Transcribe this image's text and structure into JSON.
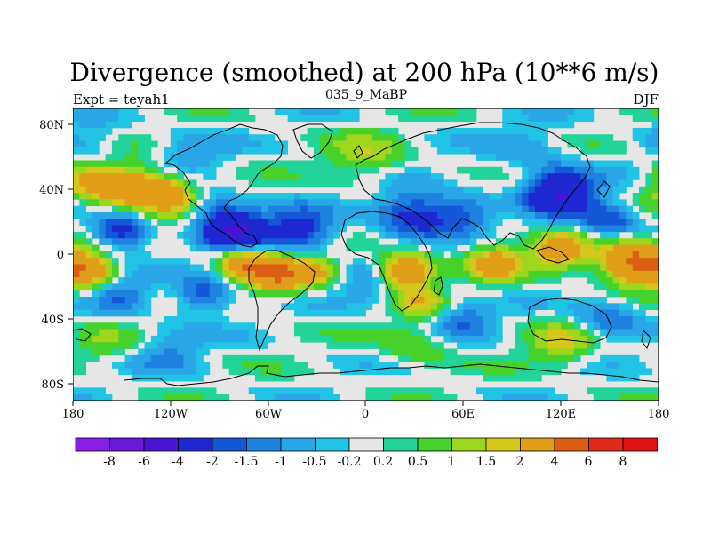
{
  "title": "Divergence (smoothed) at 200 hPa (10**6 m/s)",
  "left_label": "Expt = teyah1",
  "center_label": "035_9_MaBP",
  "right_label": "DJF",
  "y_tick_labels": [
    "80N",
    "40N",
    "0",
    "40S",
    "80S"
  ],
  "x_tick_labels": [
    "180",
    "120W",
    "60W",
    "0",
    "60E",
    "120E",
    "180"
  ],
  "colorbar": {
    "labels": [
      "-8",
      "-6",
      "-4",
      "-2",
      "-1.5",
      "-1",
      "-0.5",
      "-0.2",
      "0.2",
      "0.5",
      "1",
      "1.5",
      "2",
      "4",
      "6",
      "8"
    ],
    "colors": [
      "#8a20e8",
      "#6a18dc",
      "#4a14d4",
      "#1e28d0",
      "#1458d8",
      "#1e82e0",
      "#28a6e8",
      "#22c4e6",
      "#e6e6e6",
      "#22d49a",
      "#46d22a",
      "#9ed61e",
      "#d6c81a",
      "#e09e18",
      "#dc5e12",
      "#e22a1a",
      "#e21414"
    ]
  },
  "chart_data": {
    "type": "heatmap",
    "title": "Divergence (smoothed) at 200 hPa (10**6 m/s)",
    "units": "10**6 m/s",
    "levels": [
      -8,
      -6,
      -4,
      -2,
      -1.5,
      -1,
      -0.5,
      -0.2,
      0.2,
      0.5,
      1,
      1.5,
      2,
      4,
      6,
      8
    ],
    "x_range": [
      -180,
      180
    ],
    "y_range": [
      -90,
      90
    ],
    "x_ticks": [
      -180,
      -120,
      -60,
      0,
      60,
      120,
      180
    ],
    "y_ticks": [
      80,
      40,
      0,
      -40,
      -80
    ],
    "colormap_colors": [
      "#8a20e8",
      "#6a18dc",
      "#4a14d4",
      "#1e28d0",
      "#1458d8",
      "#1e82e0",
      "#28a6e8",
      "#22c4e6",
      "#e6e6e6",
      "#22d49a",
      "#46d22a",
      "#9ed61e",
      "#d6c81a",
      "#e09e18",
      "#dc5e12",
      "#e22a1a",
      "#e21414"
    ],
    "field_features": [
      {
        "lon": -145,
        "lat": 40,
        "value": 3,
        "spread": 16
      },
      {
        "lon": -120,
        "lat": 37,
        "value": 2,
        "spread": 14
      },
      {
        "lon": -170,
        "lat": 45,
        "value": 1.5,
        "spread": 12
      },
      {
        "lon": -150,
        "lat": 15,
        "value": -3,
        "spread": 12
      },
      {
        "lon": -80,
        "lat": 15,
        "value": -4,
        "spread": 13
      },
      {
        "lon": -40,
        "lat": 15,
        "value": -2.5,
        "spread": 14
      },
      {
        "lon": -95,
        "lat": 30,
        "value": -1.5,
        "spread": 10
      },
      {
        "lon": 30,
        "lat": 25,
        "value": -2.5,
        "spread": 16
      },
      {
        "lon": 120,
        "lat": 38,
        "value": -4,
        "spread": 14
      },
      {
        "lon": 150,
        "lat": 20,
        "value": -2,
        "spread": 12
      },
      {
        "lon": 60,
        "lat": 25,
        "value": -1.5,
        "spread": 12
      },
      {
        "lon": -55,
        "lat": -12,
        "value": 4,
        "spread": 12
      },
      {
        "lon": -75,
        "lat": -5,
        "value": 3,
        "spread": 10
      },
      {
        "lon": -30,
        "lat": -10,
        "value": 2,
        "spread": 10
      },
      {
        "lon": 25,
        "lat": -10,
        "value": 4,
        "spread": 11
      },
      {
        "lon": 35,
        "lat": -30,
        "value": 1.5,
        "spread": 10
      },
      {
        "lon": 80,
        "lat": -5,
        "value": 2.5,
        "spread": 12
      },
      {
        "lon": 120,
        "lat": 2,
        "value": 3,
        "spread": 11
      },
      {
        "lon": 165,
        "lat": -5,
        "value": 4.5,
        "spread": 14
      },
      {
        "lon": -170,
        "lat": -10,
        "value": 2.5,
        "spread": 12
      },
      {
        "lon": -100,
        "lat": -25,
        "value": -2,
        "spread": 12
      },
      {
        "lon": -150,
        "lat": -25,
        "value": -1.5,
        "spread": 12
      },
      {
        "lon": 0,
        "lat": -20,
        "value": -1,
        "spread": 12
      },
      {
        "lon": 60,
        "lat": -40,
        "value": -1.5,
        "spread": 12
      },
      {
        "lon": 150,
        "lat": -40,
        "value": -1.5,
        "spread": 14
      },
      {
        "lon": -120,
        "lat": -60,
        "value": -1,
        "spread": 14
      },
      {
        "lon": 30,
        "lat": -55,
        "value": 1,
        "spread": 14
      },
      {
        "lon": 120,
        "lat": -55,
        "value": 1.5,
        "spread": 14
      },
      {
        "lon": -160,
        "lat": -55,
        "value": 0.8,
        "spread": 12
      },
      {
        "lon": -110,
        "lat": 60,
        "value": -1,
        "spread": 14
      },
      {
        "lon": 0,
        "lat": 60,
        "value": 1.2,
        "spread": 16
      },
      {
        "lon": 100,
        "lat": 65,
        "value": -0.8,
        "spread": 16
      },
      {
        "lon": -170,
        "lat": 70,
        "value": -0.8,
        "spread": 14
      }
    ]
  }
}
